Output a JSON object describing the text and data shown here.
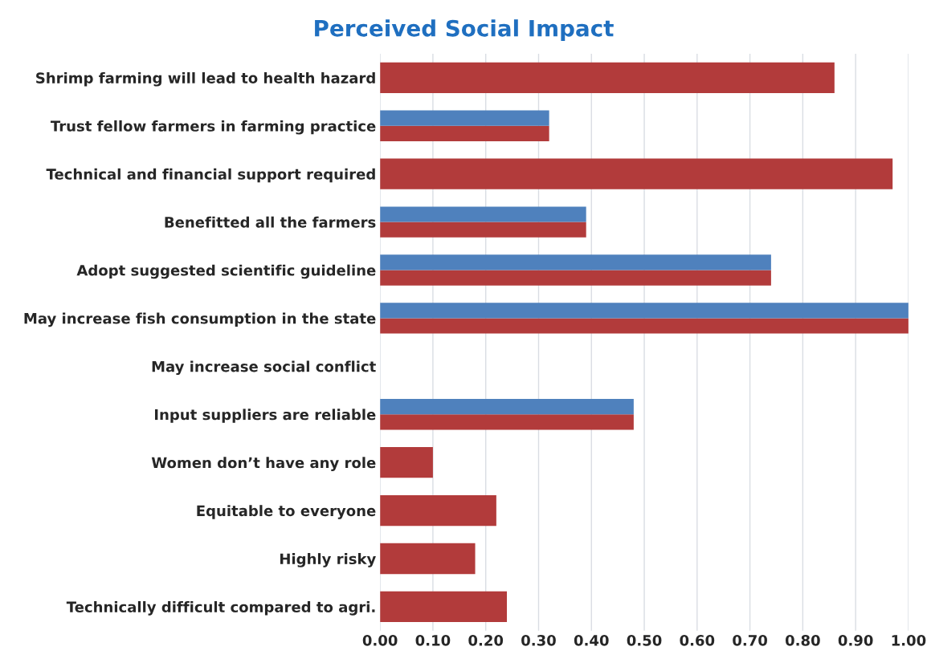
{
  "chart_data": {
    "type": "bar",
    "orientation": "horizontal",
    "title": "Perceived Social Impact",
    "categories": [
      "Shrimp farming will lead to health hazard",
      "Trust fellow farmers in farming practice",
      "Technical and financial support required",
      "Benefitted all the farmers",
      "Adopt suggested scientific guideline",
      "May increase fish consumption in the state",
      "May increase social conflict",
      "Input suppliers are reliable",
      "Women don’t have any role",
      "Equitable to everyone",
      "Highly risky",
      "Technically difficult compared to agri."
    ],
    "series": [
      {
        "color": "#b23b3b",
        "values": [
          0.86,
          0.32,
          0.97,
          0.39,
          0.74,
          1.0,
          null,
          0.48,
          0.1,
          0.22,
          0.18,
          0.24
        ]
      },
      {
        "color": "#4f81bd",
        "values": [
          null,
          0.32,
          null,
          0.39,
          0.74,
          1.0,
          null,
          0.48,
          null,
          null,
          null,
          null
        ]
      }
    ],
    "xlim": [
      0,
      1
    ],
    "xticks": [
      {
        "value": 0,
        "label": "0.00"
      },
      {
        "value": 0.1,
        "label": "0.10"
      },
      {
        "value": 0.2,
        "label": "0.20"
      },
      {
        "value": 0.3,
        "label": "0.30"
      },
      {
        "value": 0.4,
        "label": "0.40"
      },
      {
        "value": 0.5,
        "label": "0.50"
      },
      {
        "value": 0.6,
        "label": "0.60"
      },
      {
        "value": 0.7,
        "label": "0.70"
      },
      {
        "value": 0.8,
        "label": "0.80"
      },
      {
        "value": 0.9,
        "label": "0.90"
      },
      {
        "value": 1.0,
        "label": "1.00"
      }
    ],
    "grid": "x",
    "legend": false
  }
}
